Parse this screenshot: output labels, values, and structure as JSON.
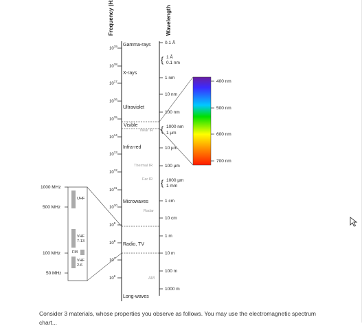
{
  "axes": {
    "frequency_label": "Frequency (Hz)",
    "wavelength_label": "Wavelength"
  },
  "frequency_ticks": [
    {
      "base": "10",
      "exp": "19"
    },
    {
      "base": "10",
      "exp": "18"
    },
    {
      "base": "10",
      "exp": "17"
    },
    {
      "base": "10",
      "exp": "16"
    },
    {
      "base": "10",
      "exp": "15"
    },
    {
      "base": "10",
      "exp": "14"
    },
    {
      "base": "10",
      "exp": "13"
    },
    {
      "base": "10",
      "exp": "12"
    },
    {
      "base": "10",
      "exp": "11"
    },
    {
      "base": "10",
      "exp": "10"
    },
    {
      "base": "10",
      "exp": "9"
    },
    {
      "base": "10",
      "exp": "8"
    },
    {
      "base": "10",
      "exp": "7"
    },
    {
      "base": "10",
      "exp": "6"
    }
  ],
  "bands": [
    "Gamma-rays",
    "X-rays",
    "Ultraviolet",
    "Visible",
    "Infra-red",
    "Microwaves",
    "Radio, TV",
    "Long-waves"
  ],
  "sub_bands": [
    "Near IR",
    "Thermal IR",
    "Far IR",
    "Radar",
    "AM"
  ],
  "wavelength_ticks": [
    "0.1 Å",
    "1 Å",
    "0.1 nm",
    "1 nm",
    "10 nm",
    "100 nm",
    "1000 nm",
    "1 µm",
    "10 µm",
    "100 µm",
    "1000 µm",
    "1 mm",
    "1 cm",
    "10 cm",
    "1 m",
    "10 m",
    "100 m",
    "1000 m"
  ],
  "visible_scale": {
    "labels": [
      "400 nm",
      "500 nm",
      "600 nm",
      "700 nm"
    ],
    "colors": [
      "#6a1fa0",
      "#2f2fff",
      "#00d0ff",
      "#00e000",
      "#ffff00",
      "#ff8c00",
      "#ff1a00"
    ]
  },
  "radio_scale": {
    "freq_labels": [
      "1000 MHz",
      "500 MHz",
      "100 MHz",
      "50 MHz"
    ],
    "band_labels": [
      "UHF",
      "VHF\n7-13",
      "FM",
      "VHF\n2-6"
    ]
  },
  "caption": "Consider 3 materials, whose properties you observe as follows. You may use the electromagnetic spectrum",
  "caption_cont": "chart..."
}
